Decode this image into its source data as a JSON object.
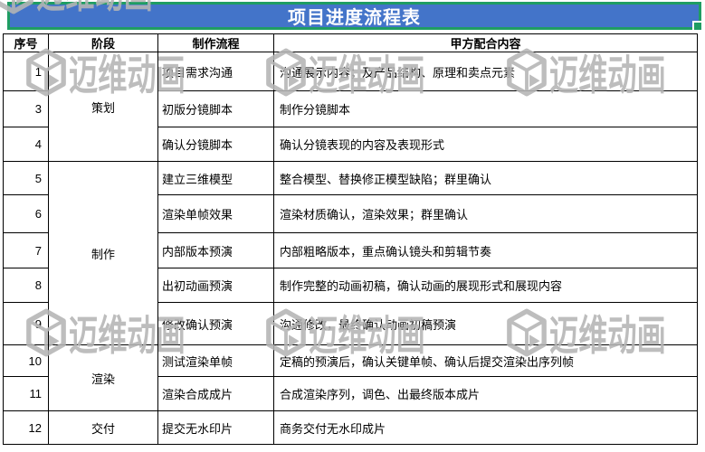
{
  "title": "项目进度流程表",
  "header": {
    "serial": "序号",
    "stage": "阶段",
    "process": "制作流程",
    "client": "甲方配合内容"
  },
  "rows": [
    {
      "num": "1",
      "stage": "策划",
      "stage_span": 3,
      "process": "项目需求沟通",
      "client": "沟通展示内容；及产品结构、原理和卖点元素"
    },
    {
      "num": "3",
      "process": "初版分镜脚本",
      "client": "制作分镜脚本"
    },
    {
      "num": "4",
      "process": "确认分镜脚本",
      "client": "确认分镜表现的内容及表现形式"
    },
    {
      "num": "5",
      "stage": "制作",
      "stage_span": 5,
      "process": "建立三维模型",
      "client": "整合模型、替换修正模型缺陷；群里确认"
    },
    {
      "num": "6",
      "process": "渲染单帧效果",
      "client": "渲染材质确认，渲染效果；群里确认"
    },
    {
      "num": "7",
      "process": "内部版本预演",
      "client": "内部粗略版本，重点确认镜头和剪辑节奏"
    },
    {
      "num": "8",
      "process": "出初动画预演",
      "client": "制作完整的动画初稿，确认动画的展现形式和展现内容"
    },
    {
      "num": "9",
      "process": "修改确认预演",
      "client": "沟通修改，最终确认动画初稿预演"
    },
    {
      "num": "10",
      "stage": "渲染",
      "stage_span": 2,
      "process": "测试渲染单帧",
      "client": "定稿的预演后，确认关键单帧、确认后提交渲染出序列帧"
    },
    {
      "num": "11",
      "process": "渲染合成成片",
      "client": "合成渲染序列，调色、出最终版本成片"
    },
    {
      "num": "12",
      "stage": "交付",
      "stage_span": 1,
      "process": "提交无水印片",
      "client": "商务交付无水印成片"
    }
  ],
  "watermark": {
    "text": "迈维动画",
    "logo": "3d-cube-logo"
  },
  "colors": {
    "title_bg": "#4374C9",
    "title_border": "#1F9D63",
    "grid": "#000000",
    "watermark": "#b5b5b5",
    "title_text": "#ffffff"
  }
}
